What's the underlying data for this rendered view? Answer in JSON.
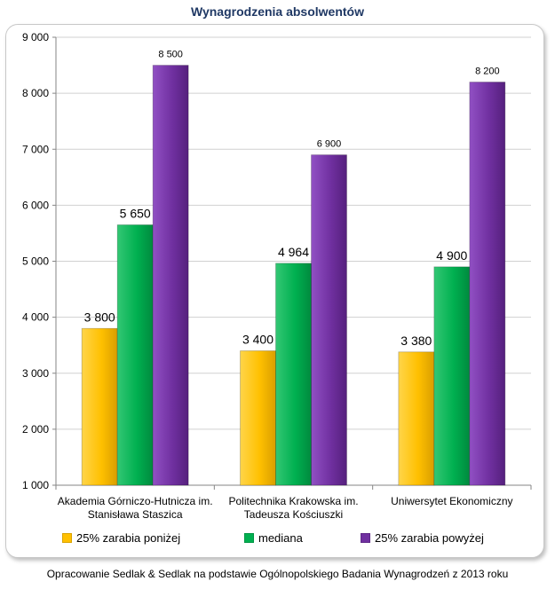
{
  "chart_data": {
    "type": "bar",
    "title": "Wynagrodzenia absolwentów",
    "categories": [
      "Akademia Górniczo-Hutnicza im.\nStanisława Staszica",
      "Politechnika Krakowska im.\nTadeusza Kościuszki",
      "Uniwersytet Ekonomiczny"
    ],
    "series": [
      {
        "name": "25% zarabia poniżej",
        "color": "#ffc000",
        "values": [
          3800,
          3400,
          3380
        ],
        "labels": [
          "3 800",
          "3 400",
          "3 380"
        ]
      },
      {
        "name": "mediana",
        "color": "#00b050",
        "values": [
          5650,
          4964,
          4900
        ],
        "labels": [
          "5 650",
          "4 964",
          "4 900"
        ]
      },
      {
        "name": "25% zarabia powyżej",
        "color": "#7030a0",
        "values": [
          8500,
          6900,
          8200
        ],
        "labels": [
          "8 500",
          "6 900",
          "8 200"
        ]
      }
    ],
    "ylim": [
      1000,
      9000
    ],
    "yticks": [
      1000,
      2000,
      3000,
      4000,
      5000,
      6000,
      7000,
      8000,
      9000
    ],
    "ytick_labels": [
      "1 000",
      "2 000",
      "3 000",
      "4 000",
      "5 000",
      "6 000",
      "7 000",
      "8 000",
      "9 000"
    ],
    "grid": true,
    "legend_position": "bottom",
    "xlabel": "",
    "ylabel": ""
  },
  "source_note": "Opracowanie Sedlak & Sedlak na podstawie Ogólnopolskiego Badania Wynagrodzeń z 2013 roku"
}
